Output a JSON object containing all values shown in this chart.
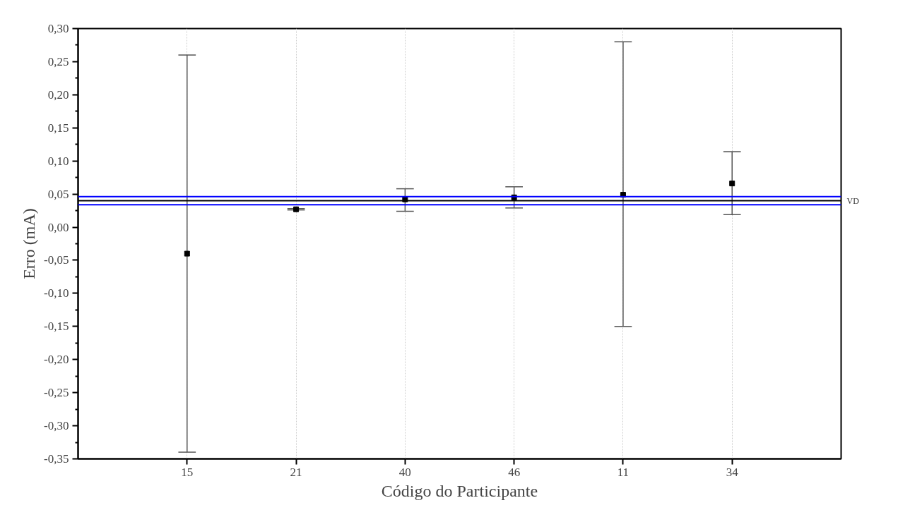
{
  "chart_data": {
    "type": "scatter",
    "xlabel": "Código do Participante",
    "ylabel": "Erro (mA)",
    "categories": [
      "15",
      "21",
      "40",
      "46",
      "11",
      "34"
    ],
    "series": [
      {
        "color": "#000000",
        "marker": "square",
        "values": [
          -0.04,
          0.027,
          0.042,
          0.045,
          0.049,
          0.066
        ],
        "errors": [
          [
            -0.34,
            0.26
          ],
          [
            0.026,
            0.028
          ],
          [
            0.024,
            0.058
          ],
          [
            0.029,
            0.061
          ],
          [
            -0.15,
            0.28
          ],
          [
            0.019,
            0.114
          ]
        ]
      }
    ],
    "ylim": [
      -0.35,
      0.3
    ],
    "yticks": [
      {
        "value": -0.35,
        "label": "-0,35"
      },
      {
        "value": -0.3,
        "label": "-0,30"
      },
      {
        "value": -0.25,
        "label": "-0,25"
      },
      {
        "value": -0.2,
        "label": "-0,20"
      },
      {
        "value": -0.15,
        "label": "-0,15"
      },
      {
        "value": -0.1,
        "label": "-0,10"
      },
      {
        "value": -0.05,
        "label": "-0,05"
      },
      {
        "value": 0,
        "label": "0,00"
      },
      {
        "value": 0.05,
        "label": "0,05"
      },
      {
        "value": 0.1,
        "label": "0,10"
      },
      {
        "value": 0.15,
        "label": "0,15"
      },
      {
        "value": 0.2,
        "label": "0,20"
      },
      {
        "value": 0.25,
        "label": "0,25"
      },
      {
        "value": 0.3,
        "label": "0,30"
      }
    ],
    "ref_lines": [
      {
        "axis": "y",
        "value": 0.04,
        "label": "VD",
        "color": "#000000"
      },
      {
        "axis": "y",
        "value": 0.046,
        "label": null,
        "color": "#0000ff"
      },
      {
        "axis": "y",
        "value": 0.034,
        "label": null,
        "color": "#0000ff"
      }
    ],
    "grid": "x"
  }
}
